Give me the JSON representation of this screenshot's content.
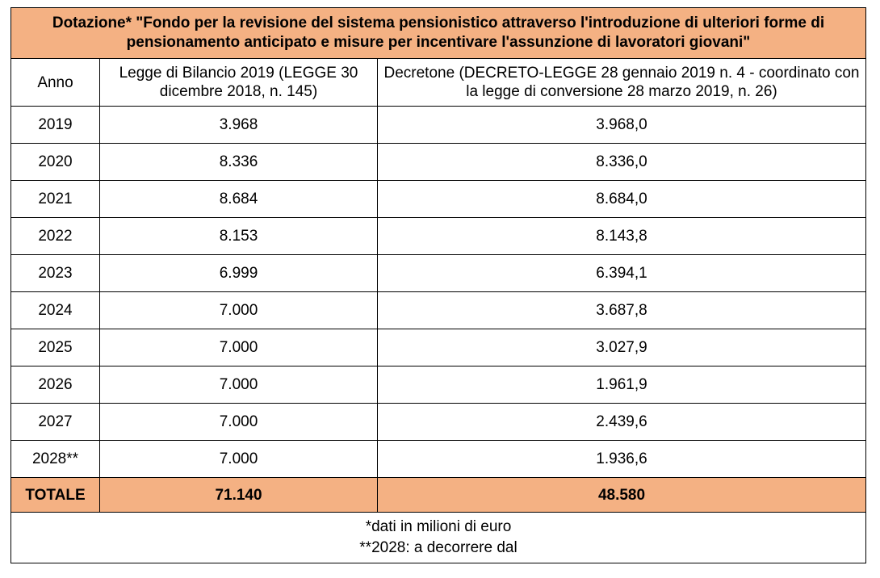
{
  "colors": {
    "highlight": "#f4b183",
    "border": "#000000",
    "background": "#ffffff"
  },
  "table": {
    "title": "Dotazione* \"Fondo per la revisione del sistema pensionistico attraverso l'introduzione di ulteriori forme di pensionamento anticipato e misure per incentivare l'assunzione di lavoratori giovani\"",
    "headers": {
      "year": "Anno",
      "budget_law": "Legge di Bilancio 2019 (LEGGE 30 dicembre 2018, n. 145)",
      "decretone": "Decretone (DECRETO-LEGGE 28 gennaio 2019 n. 4 - coordinato con la legge di conversione 28 marzo 2019, n. 26)"
    },
    "rows": [
      {
        "year": "2019",
        "budget_law": "3.968",
        "decretone": "3.968,0"
      },
      {
        "year": "2020",
        "budget_law": "8.336",
        "decretone": "8.336,0"
      },
      {
        "year": "2021",
        "budget_law": "8.684",
        "decretone": "8.684,0"
      },
      {
        "year": "2022",
        "budget_law": "8.153",
        "decretone": "8.143,8"
      },
      {
        "year": "2023",
        "budget_law": "6.999",
        "decretone": "6.394,1"
      },
      {
        "year": "2024",
        "budget_law": "7.000",
        "decretone": "3.687,8"
      },
      {
        "year": "2025",
        "budget_law": "7.000",
        "decretone": "3.027,9"
      },
      {
        "year": "2026",
        "budget_law": "7.000",
        "decretone": "1.961,9"
      },
      {
        "year": "2027",
        "budget_law": "7.000",
        "decretone": "2.439,6"
      },
      {
        "year": "2028**",
        "budget_law": "7.000",
        "decretone": "1.936,6"
      }
    ],
    "total": {
      "label": "TOTALE",
      "budget_law": "71.140",
      "decretone": "48.580"
    },
    "footnotes": [
      "*dati in milioni di euro",
      "**2028: a decorrere dal"
    ]
  }
}
